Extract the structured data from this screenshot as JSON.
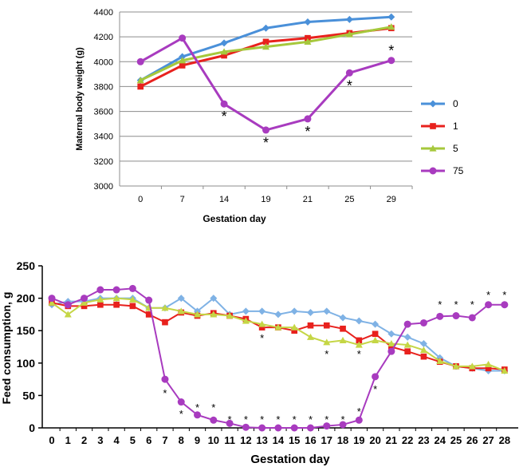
{
  "chart_data": [
    {
      "type": "line",
      "title": "",
      "xlabel": "Gestation day",
      "ylabel": "Maternal body weight (g)",
      "categories": [
        "0",
        "7",
        "14",
        "19",
        "21",
        "25",
        "29"
      ],
      "ylim": [
        3000,
        4400
      ],
      "yticks": [
        "3000",
        "3200",
        "3400",
        "3600",
        "3800",
        "4000",
        "4200",
        "4400"
      ],
      "grid": true,
      "legend_position": "right",
      "series": [
        {
          "name": "0",
          "color": "#4a90d9",
          "marker": "diamond",
          "values": [
            3850,
            4040,
            4150,
            4270,
            4320,
            4340,
            4360
          ]
        },
        {
          "name": "1",
          "color": "#e8211d",
          "marker": "square",
          "values": [
            3800,
            3970,
            4050,
            4160,
            4190,
            4230,
            4270
          ]
        },
        {
          "name": "5",
          "color": "#a6c83c",
          "marker": "triangle",
          "values": [
            3850,
            4010,
            4080,
            4120,
            4160,
            4220,
            4280
          ]
        },
        {
          "name": "75",
          "color": "#a83bbf",
          "marker": "circle",
          "values": [
            4000,
            4190,
            3660,
            3450,
            3540,
            3910,
            4010
          ]
        }
      ],
      "annotations": [
        {
          "category": "14",
          "text": "*"
        },
        {
          "category": "19",
          "text": "*"
        },
        {
          "category": "21",
          "text": "*"
        },
        {
          "category": "25",
          "text": "*"
        },
        {
          "category": "29",
          "text": "*"
        }
      ]
    },
    {
      "type": "line",
      "title": "",
      "xlabel": "Gestation day",
      "ylabel": "Feed consumption, g",
      "categories": [
        "0",
        "1",
        "2",
        "3",
        "4",
        "5",
        "6",
        "7",
        "8",
        "9",
        "10",
        "11",
        "12",
        "13",
        "14",
        "15",
        "16",
        "17",
        "18",
        "19",
        "20",
        "21",
        "22",
        "23",
        "24",
        "25",
        "26",
        "27",
        "28"
      ],
      "ylim": [
        0,
        250
      ],
      "yticks": [
        "0",
        "50",
        "100",
        "150",
        "200",
        "250"
      ],
      "grid": false,
      "series": [
        {
          "name": "0",
          "color": "#7fb2e5",
          "marker": "diamond",
          "values": [
            190,
            195,
            195,
            200,
            200,
            200,
            185,
            185,
            200,
            180,
            200,
            175,
            180,
            180,
            175,
            180,
            178,
            180,
            170,
            165,
            160,
            145,
            140,
            130,
            108,
            95,
            92,
            88,
            88
          ]
        },
        {
          "name": "1",
          "color": "#e8211d",
          "marker": "square",
          "values": [
            193,
            188,
            188,
            190,
            190,
            188,
            175,
            163,
            178,
            173,
            177,
            173,
            168,
            155,
            155,
            150,
            158,
            158,
            153,
            135,
            145,
            125,
            118,
            110,
            102,
            95,
            92,
            92,
            90
          ]
        },
        {
          "name": "5",
          "color": "#c5d645",
          "marker": "triangle",
          "values": [
            193,
            175,
            193,
            198,
            200,
            198,
            185,
            185,
            180,
            175,
            175,
            173,
            165,
            160,
            155,
            155,
            140,
            132,
            135,
            128,
            135,
            130,
            128,
            120,
            103,
            95,
            95,
            98,
            88
          ]
        },
        {
          "name": "75",
          "color": "#a83bbf",
          "marker": "circle",
          "values": [
            200,
            190,
            200,
            213,
            213,
            215,
            197,
            75,
            40,
            20,
            12,
            7,
            1,
            0,
            0,
            0,
            0,
            3,
            5,
            12,
            79,
            118,
            160,
            162,
            172,
            173,
            170,
            190,
            190
          ]
        }
      ],
      "annotation_categories": [
        "7",
        "8",
        "9",
        "10",
        "11",
        "12",
        "13",
        "14",
        "15",
        "16",
        "17",
        "18",
        "19",
        "20",
        "24",
        "25",
        "26",
        "27",
        "28"
      ],
      "annotation_text": "*"
    }
  ]
}
